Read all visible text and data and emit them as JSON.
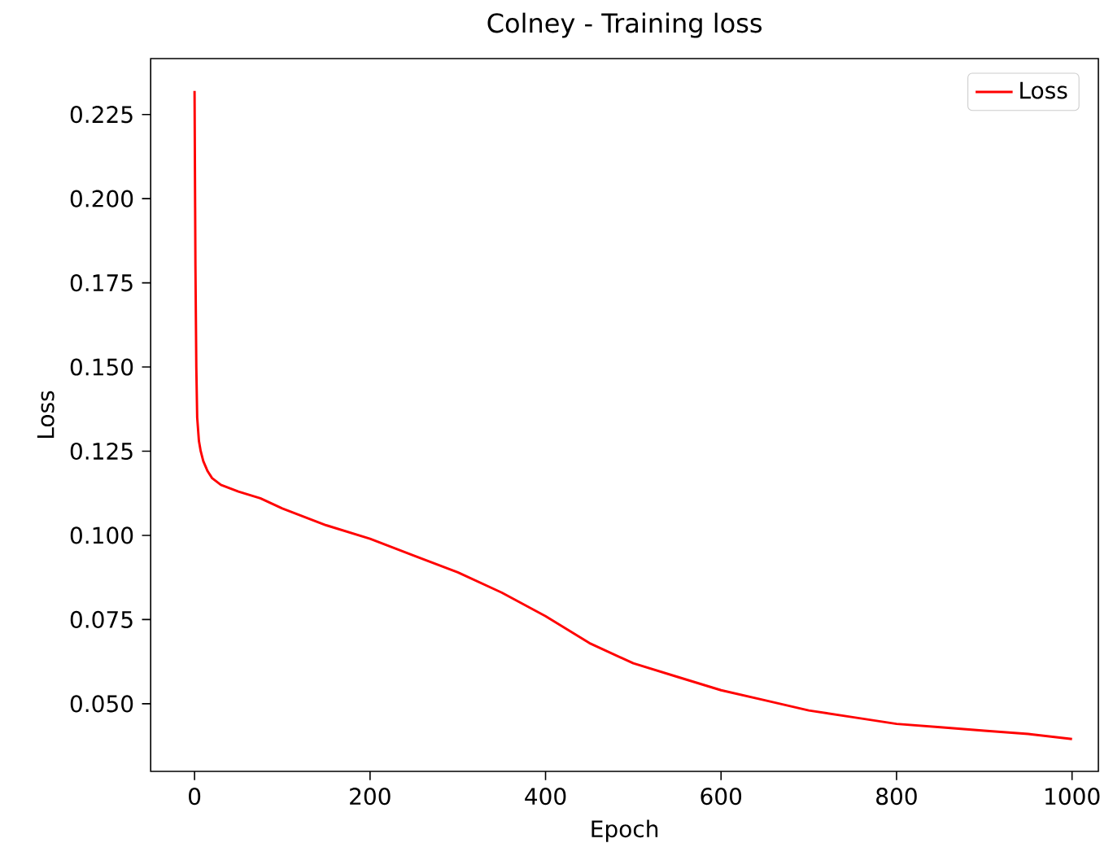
{
  "chart_data": {
    "type": "line",
    "title": "Colney - Training loss",
    "xlabel": "Epoch",
    "ylabel": "Loss",
    "x": [
      0,
      1,
      2,
      3,
      5,
      7,
      10,
      15,
      20,
      30,
      50,
      75,
      100,
      150,
      200,
      250,
      300,
      350,
      400,
      450,
      500,
      550,
      600,
      650,
      700,
      750,
      800,
      850,
      900,
      950,
      1000
    ],
    "series": [
      {
        "name": "Loss",
        "color": "#ff0000",
        "values": [
          0.232,
          0.18,
          0.15,
          0.135,
          0.128,
          0.125,
          0.122,
          0.119,
          0.117,
          0.115,
          0.113,
          0.111,
          0.108,
          0.103,
          0.099,
          0.094,
          0.089,
          0.083,
          0.076,
          0.068,
          0.062,
          0.058,
          0.054,
          0.051,
          0.048,
          0.046,
          0.044,
          0.043,
          0.042,
          0.041,
          0.0395
        ]
      }
    ],
    "xlim": [
      -50,
      1030
    ],
    "ylim": [
      0.0299,
      0.2416
    ],
    "xticks": [
      0,
      200,
      400,
      600,
      800,
      1000
    ],
    "yticks": [
      {
        "value": 0.05,
        "label": "0.050"
      },
      0.075,
      {
        "value": 0.1,
        "label": "0.100"
      },
      0.125,
      {
        "value": 0.15,
        "label": "0.150"
      },
      0.175,
      {
        "value": 0.2,
        "label": "0.200"
      },
      0.225
    ],
    "legend": "top right",
    "grid": false,
    "marker": "none",
    "line_style": "solid"
  }
}
